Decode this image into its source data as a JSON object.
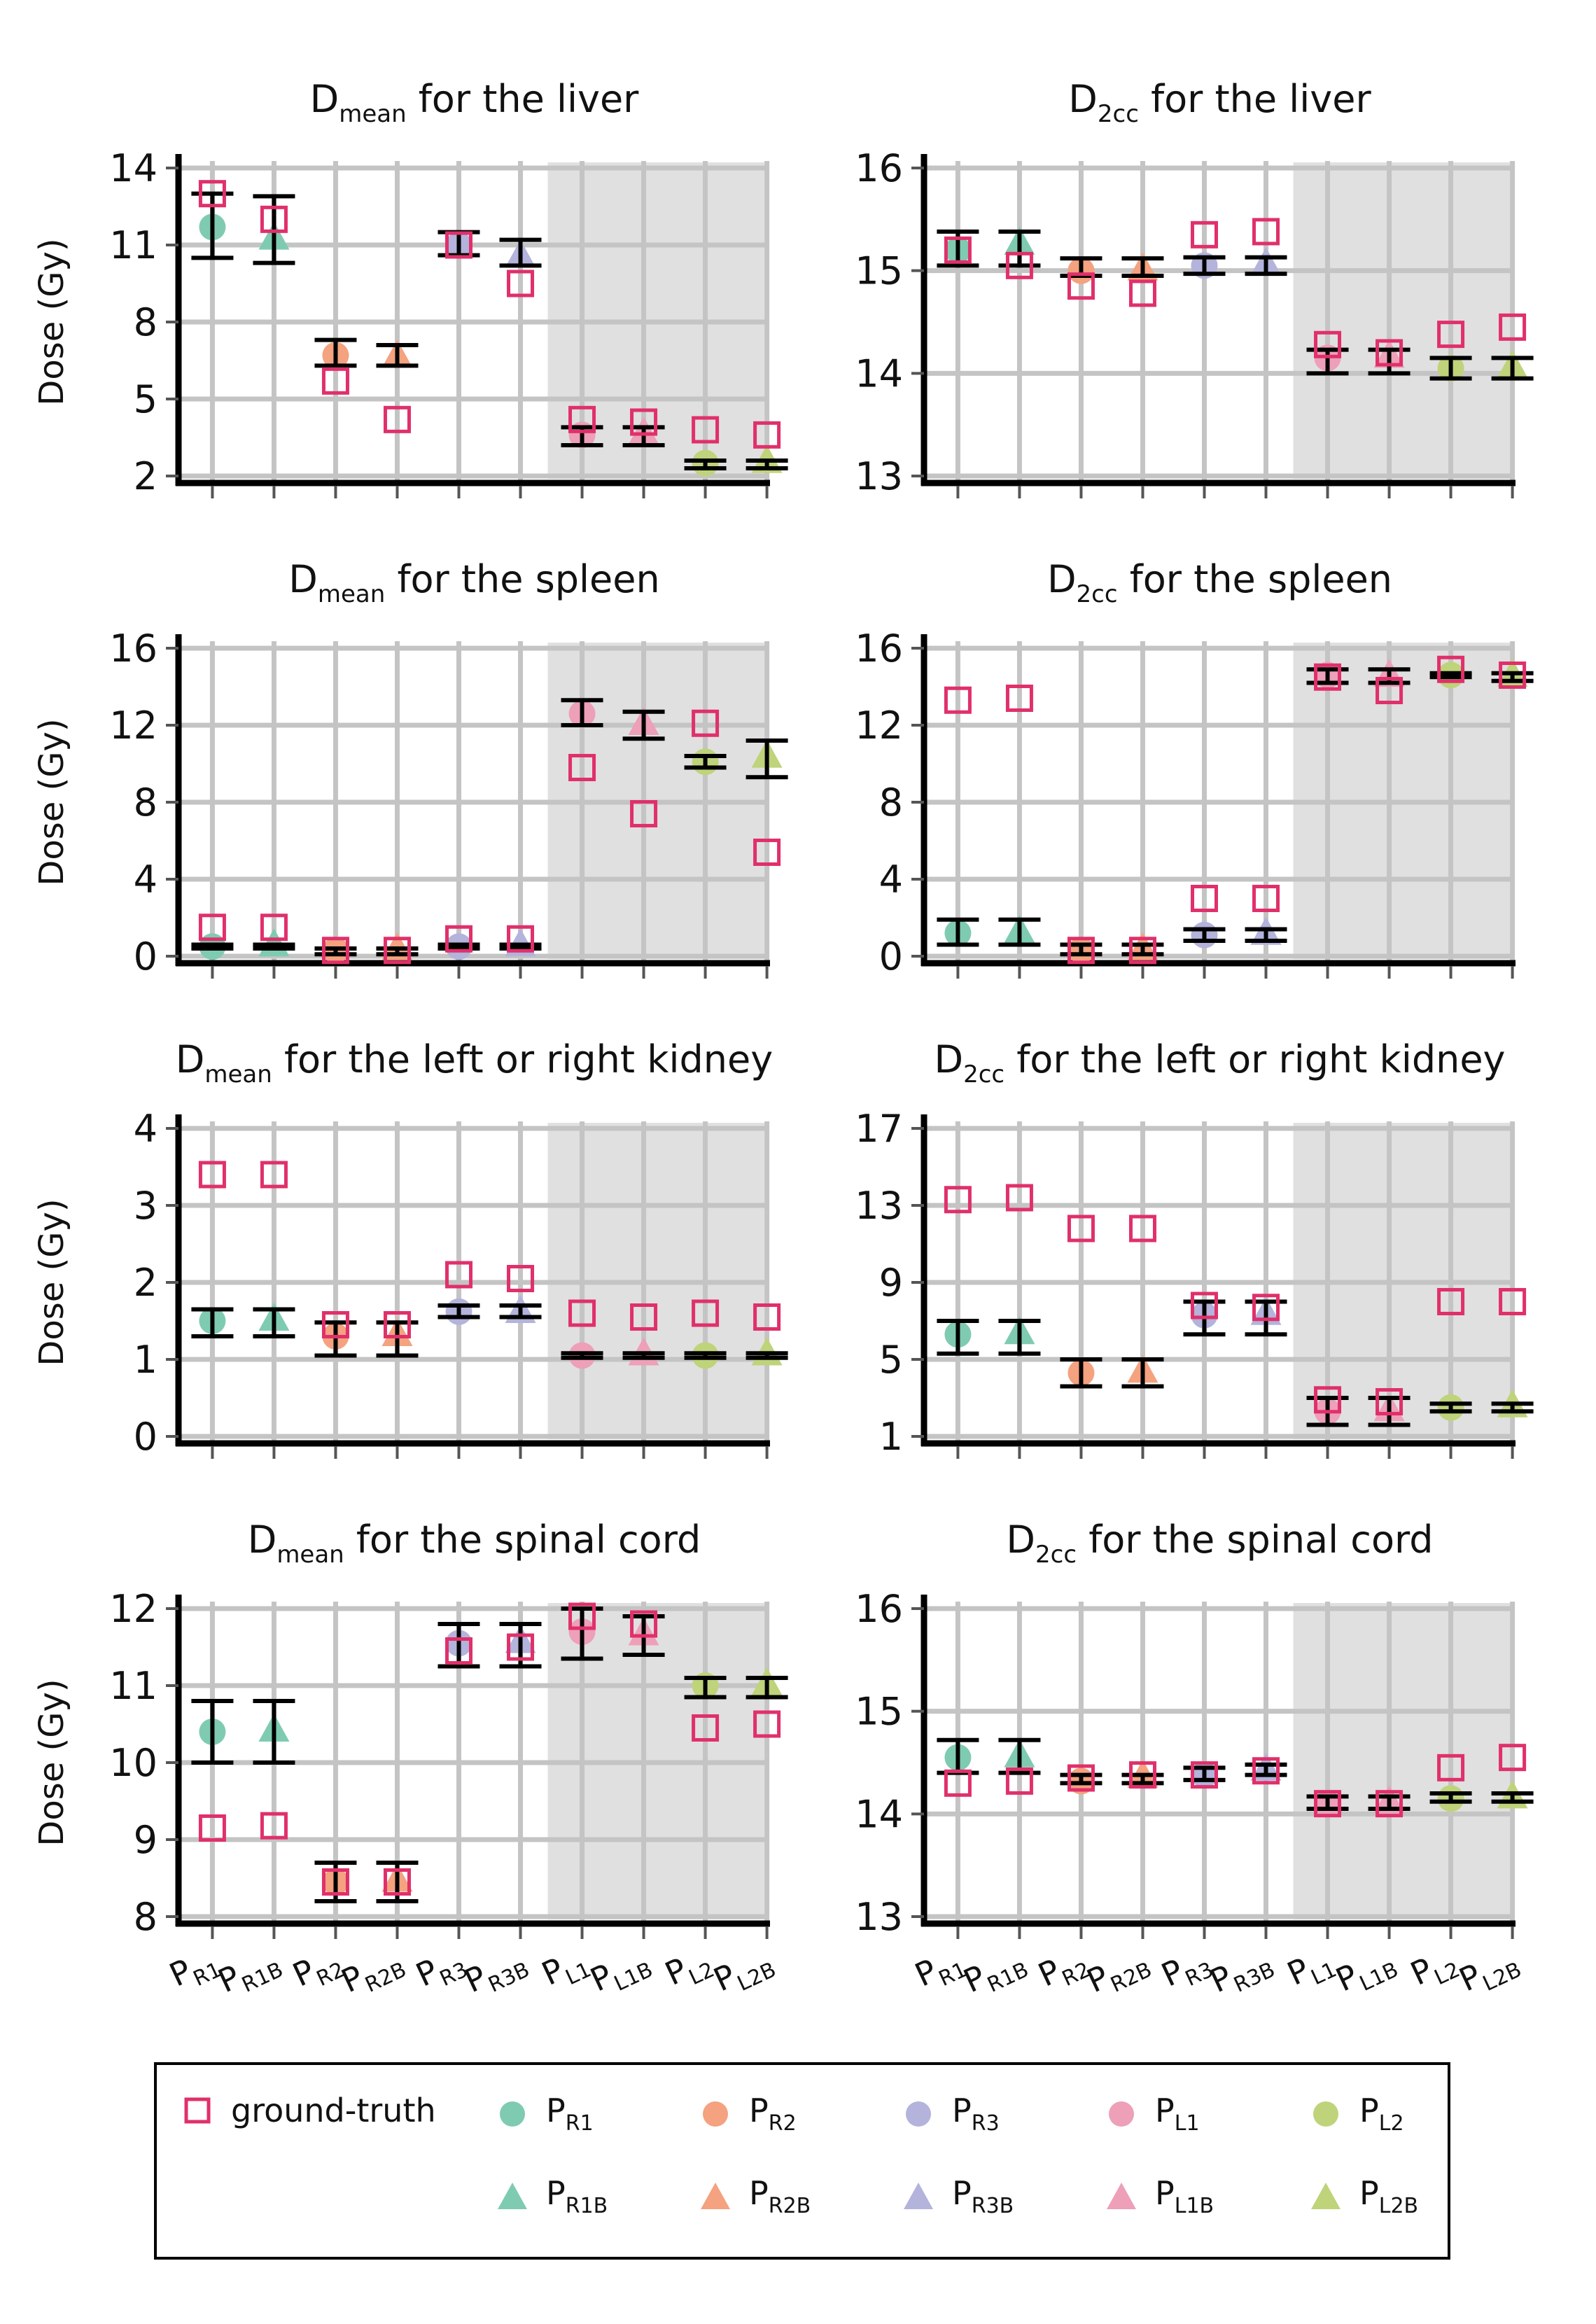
{
  "legend": [
    {
      "key": "gt",
      "marker": "square",
      "color": "#e0306a",
      "main": "ground-truth",
      "sub": ""
    },
    {
      "key": "R1",
      "marker": "circle",
      "color": "#7fcbb1",
      "main": "P",
      "sub": "R1"
    },
    {
      "key": "R2",
      "marker": "circle",
      "color": "#f4a27f",
      "main": "P",
      "sub": "R2"
    },
    {
      "key": "R3",
      "marker": "circle",
      "color": "#b3b3dc",
      "main": "P",
      "sub": "R3"
    },
    {
      "key": "L1",
      "marker": "circle",
      "color": "#eda0b8",
      "main": "P",
      "sub": "L1"
    },
    {
      "key": "L2",
      "marker": "circle",
      "color": "#bfd37a",
      "main": "P",
      "sub": "L2"
    },
    {
      "key": "R1B",
      "marker": "triangle",
      "color": "#7fcbb1",
      "main": "P",
      "sub": "R1B"
    },
    {
      "key": "R2B",
      "marker": "triangle",
      "color": "#f4a27f",
      "main": "P",
      "sub": "R2B"
    },
    {
      "key": "R3B",
      "marker": "triangle",
      "color": "#b3b3dc",
      "main": "P",
      "sub": "R3B"
    },
    {
      "key": "L1B",
      "marker": "triangle",
      "color": "#eda0b8",
      "main": "P",
      "sub": "L1B"
    },
    {
      "key": "L2B",
      "marker": "triangle",
      "color": "#bfd37a",
      "main": "P",
      "sub": "L2B"
    }
  ],
  "chart_data": [
    {
      "type": "scatter",
      "title_main": "D",
      "title_sub": "mean",
      "title_rest": " for the liver",
      "ylabel": "Dose (Gy)",
      "ylim": [
        2,
        14
      ],
      "yticks": [
        2,
        5,
        8,
        11,
        14
      ],
      "grid": true,
      "shaded_categories": [
        "PL1",
        "PL1B",
        "PL2",
        "PL2B"
      ],
      "categories": [
        {
          "main": "P",
          "sub": "R1"
        },
        {
          "main": "P",
          "sub": "R1B"
        },
        {
          "main": "P",
          "sub": "R2"
        },
        {
          "main": "P",
          "sub": "R2B"
        },
        {
          "main": "P",
          "sub": "R3"
        },
        {
          "main": "P",
          "sub": "R3B"
        },
        {
          "main": "P",
          "sub": "L1"
        },
        {
          "main": "P",
          "sub": "L1B"
        },
        {
          "main": "P",
          "sub": "L2"
        },
        {
          "main": "P",
          "sub": "L2B"
        }
      ],
      "ground_truth": [
        13,
        12,
        5.7,
        4.2,
        11,
        9.5,
        4.2,
        4.1,
        3.8,
        3.6
      ],
      "prediction": [
        11.7,
        11.2,
        6.7,
        6.6,
        11,
        10.5,
        3.6,
        3.6,
        2.5,
        2.5
      ],
      "error_low": [
        10.5,
        10.3,
        6.3,
        6.3,
        10.6,
        10.2,
        3.2,
        3.2,
        2.3,
        2.3
      ],
      "error_high": [
        13,
        12.9,
        7.3,
        7.1,
        11.5,
        11.2,
        3.9,
        3.9,
        2.6,
        2.6
      ]
    },
    {
      "type": "scatter",
      "title_main": "D",
      "title_sub": "2cc",
      "title_rest": " for the liver",
      "ylabel": "",
      "ylim": [
        13,
        16
      ],
      "yticks": [
        13,
        14,
        15,
        16
      ],
      "grid": true,
      "shaded_categories": [
        "PL1",
        "PL1B",
        "PL2",
        "PL2B"
      ],
      "categories": [
        {
          "main": "P",
          "sub": "R1"
        },
        {
          "main": "P",
          "sub": "R1B"
        },
        {
          "main": "P",
          "sub": "R2"
        },
        {
          "main": "P",
          "sub": "R2B"
        },
        {
          "main": "P",
          "sub": "R3"
        },
        {
          "main": "P",
          "sub": "R3B"
        },
        {
          "main": "P",
          "sub": "L1"
        },
        {
          "main": "P",
          "sub": "L1B"
        },
        {
          "main": "P",
          "sub": "L2"
        },
        {
          "main": "P",
          "sub": "L2B"
        }
      ],
      "ground_truth": [
        15.2,
        15.05,
        14.85,
        14.78,
        15.35,
        15.38,
        14.28,
        14.2,
        14.38,
        14.45
      ],
      "prediction": [
        15.2,
        15.25,
        15.0,
        15.0,
        15.05,
        15.05,
        14.15,
        14.15,
        14.05,
        14.05
      ],
      "error_low": [
        15.05,
        15.05,
        14.95,
        14.95,
        14.97,
        14.97,
        14.0,
        14.0,
        13.95,
        13.95
      ],
      "error_high": [
        15.38,
        15.38,
        15.12,
        15.12,
        15.13,
        15.13,
        14.23,
        14.23,
        14.15,
        14.15
      ]
    },
    {
      "type": "scatter",
      "title_main": "D",
      "title_sub": "mean",
      "title_rest": " for the spleen",
      "ylabel": "Dose (Gy)",
      "ylim": [
        0,
        16
      ],
      "yticks": [
        0,
        4,
        8,
        12,
        16
      ],
      "grid": true,
      "shaded_categories": [
        "PL1",
        "PL1B",
        "PL2",
        "PL2B"
      ],
      "categories": [
        {
          "main": "P",
          "sub": "R1"
        },
        {
          "main": "P",
          "sub": "R1B"
        },
        {
          "main": "P",
          "sub": "R2"
        },
        {
          "main": "P",
          "sub": "R2B"
        },
        {
          "main": "P",
          "sub": "R3"
        },
        {
          "main": "P",
          "sub": "R3B"
        },
        {
          "main": "P",
          "sub": "L1"
        },
        {
          "main": "P",
          "sub": "L1B"
        },
        {
          "main": "P",
          "sub": "L2"
        },
        {
          "main": "P",
          "sub": "L2B"
        }
      ],
      "ground_truth": [
        1.5,
        1.5,
        0.3,
        0.3,
        0.9,
        0.9,
        9.8,
        7.4,
        12.1,
        5.4
      ],
      "prediction": [
        0.5,
        0.5,
        0.3,
        0.3,
        0.5,
        0.5,
        12.6,
        12.0,
        10.1,
        10.3
      ],
      "error_low": [
        0.4,
        0.4,
        0.1,
        0.1,
        0.4,
        0.4,
        12.0,
        11.3,
        9.8,
        9.3
      ],
      "error_high": [
        0.6,
        0.6,
        0.4,
        0.4,
        0.6,
        0.6,
        13.3,
        12.7,
        10.4,
        11.2
      ]
    },
    {
      "type": "scatter",
      "title_main": "D",
      "title_sub": "2cc",
      "title_rest": " for the spleen",
      "ylabel": "",
      "ylim": [
        0,
        16
      ],
      "yticks": [
        0,
        4,
        8,
        12,
        16
      ],
      "grid": true,
      "shaded_categories": [
        "PL1",
        "PL1B",
        "PL2",
        "PL2B"
      ],
      "categories": [
        {
          "main": "P",
          "sub": "R1"
        },
        {
          "main": "P",
          "sub": "R1B"
        },
        {
          "main": "P",
          "sub": "R2"
        },
        {
          "main": "P",
          "sub": "R2B"
        },
        {
          "main": "P",
          "sub": "R3"
        },
        {
          "main": "P",
          "sub": "R3B"
        },
        {
          "main": "P",
          "sub": "L1"
        },
        {
          "main": "P",
          "sub": "L1B"
        },
        {
          "main": "P",
          "sub": "L2"
        },
        {
          "main": "P",
          "sub": "L2B"
        }
      ],
      "ground_truth": [
        13.3,
        13.4,
        0.3,
        0.3,
        3.0,
        3.0,
        14.5,
        13.8,
        14.9,
        14.6
      ],
      "prediction": [
        1.2,
        1.2,
        0.3,
        0.3,
        1.1,
        1.1,
        14.6,
        14.5,
        14.6,
        14.5
      ],
      "error_low": [
        0.6,
        0.6,
        0.1,
        0.1,
        0.8,
        0.8,
        14.2,
        14.2,
        14.5,
        14.3
      ],
      "error_high": [
        1.9,
        1.9,
        0.6,
        0.6,
        1.4,
        1.4,
        14.9,
        14.9,
        14.7,
        14.7
      ]
    },
    {
      "type": "scatter",
      "title_main": "D",
      "title_sub": "mean",
      "title_rest": " for the left or right kidney",
      "ylabel": "Dose (Gy)",
      "ylim": [
        0,
        4
      ],
      "yticks": [
        0,
        1,
        2,
        3,
        4
      ],
      "grid": true,
      "shaded_categories": [
        "PL1",
        "PL1B",
        "PL2",
        "PL2B"
      ],
      "categories": [
        {
          "main": "P",
          "sub": "R1"
        },
        {
          "main": "P",
          "sub": "R1B"
        },
        {
          "main": "P",
          "sub": "R2"
        },
        {
          "main": "P",
          "sub": "R2B"
        },
        {
          "main": "P",
          "sub": "R3"
        },
        {
          "main": "P",
          "sub": "R3B"
        },
        {
          "main": "P",
          "sub": "L1"
        },
        {
          "main": "P",
          "sub": "L1B"
        },
        {
          "main": "P",
          "sub": "L2"
        },
        {
          "main": "P",
          "sub": "L2B"
        }
      ],
      "ground_truth": [
        3.4,
        3.4,
        1.45,
        1.45,
        2.1,
        2.05,
        1.6,
        1.55,
        1.6,
        1.55
      ],
      "prediction": [
        1.5,
        1.5,
        1.3,
        1.3,
        1.62,
        1.6,
        1.05,
        1.05,
        1.05,
        1.05
      ],
      "error_low": [
        1.3,
        1.3,
        1.05,
        1.05,
        1.55,
        1.55,
        1.02,
        1.02,
        1.02,
        1.02
      ],
      "error_high": [
        1.65,
        1.65,
        1.48,
        1.48,
        1.7,
        1.7,
        1.08,
        1.08,
        1.08,
        1.08
      ]
    },
    {
      "type": "scatter",
      "title_main": "D",
      "title_sub": "2cc",
      "title_rest": " for the left or right kidney",
      "ylabel": "",
      "ylim": [
        1,
        17
      ],
      "yticks": [
        1,
        5,
        9,
        13,
        17
      ],
      "grid": true,
      "shaded_categories": [
        "PL1",
        "PL1B",
        "PL2",
        "PL2B"
      ],
      "categories": [
        {
          "main": "P",
          "sub": "R1"
        },
        {
          "main": "P",
          "sub": "R1B"
        },
        {
          "main": "P",
          "sub": "R2"
        },
        {
          "main": "P",
          "sub": "R2B"
        },
        {
          "main": "P",
          "sub": "R3"
        },
        {
          "main": "P",
          "sub": "R3B"
        },
        {
          "main": "P",
          "sub": "L1"
        },
        {
          "main": "P",
          "sub": "L1B"
        },
        {
          "main": "P",
          "sub": "L2"
        },
        {
          "main": "P",
          "sub": "L2B"
        }
      ],
      "ground_truth": [
        13.3,
        13.4,
        11.8,
        11.8,
        7.8,
        7.7,
        2.9,
        2.8,
        8.0,
        8.0
      ],
      "prediction": [
        6.3,
        6.3,
        4.3,
        4.3,
        7.3,
        7.3,
        2.3,
        2.3,
        2.5,
        2.5
      ],
      "error_low": [
        5.3,
        5.3,
        3.6,
        3.6,
        6.3,
        6.3,
        1.6,
        1.6,
        2.3,
        2.3
      ],
      "error_high": [
        7.0,
        7.0,
        5.0,
        5.0,
        8.0,
        8.0,
        3.0,
        3.0,
        2.7,
        2.7
      ]
    },
    {
      "type": "scatter",
      "title_main": "D",
      "title_sub": "mean",
      "title_rest": " for the spinal cord",
      "ylabel": "Dose (Gy)",
      "ylim": [
        8,
        12
      ],
      "yticks": [
        8,
        9,
        10,
        11,
        12
      ],
      "grid": true,
      "shaded_categories": [
        "PL1",
        "PL1B",
        "PL2",
        "PL2B"
      ],
      "categories": [
        {
          "main": "P",
          "sub": "R1"
        },
        {
          "main": "P",
          "sub": "R1B"
        },
        {
          "main": "P",
          "sub": "R2"
        },
        {
          "main": "P",
          "sub": "R2B"
        },
        {
          "main": "P",
          "sub": "R3"
        },
        {
          "main": "P",
          "sub": "R3B"
        },
        {
          "main": "P",
          "sub": "L1"
        },
        {
          "main": "P",
          "sub": "L1B"
        },
        {
          "main": "P",
          "sub": "L2"
        },
        {
          "main": "P",
          "sub": "L2B"
        }
      ],
      "ground_truth": [
        9.15,
        9.18,
        8.45,
        8.45,
        11.45,
        11.5,
        11.9,
        11.8,
        10.45,
        10.5
      ],
      "prediction": [
        10.4,
        10.4,
        8.45,
        8.45,
        11.55,
        11.55,
        11.7,
        11.65,
        11.0,
        11.0
      ],
      "error_low": [
        10.0,
        10.0,
        8.2,
        8.2,
        11.25,
        11.25,
        11.35,
        11.4,
        10.85,
        10.85
      ],
      "error_high": [
        10.8,
        10.8,
        8.7,
        8.7,
        11.8,
        11.8,
        12.0,
        11.9,
        11.1,
        11.1
      ]
    },
    {
      "type": "scatter",
      "title_main": "D",
      "title_sub": "2cc",
      "title_rest": " for the spinal cord",
      "ylabel": "",
      "ylim": [
        13,
        16
      ],
      "yticks": [
        13,
        14,
        15,
        16
      ],
      "grid": true,
      "shaded_categories": [
        "PL1",
        "PL1B",
        "PL2",
        "PL2B"
      ],
      "categories": [
        {
          "main": "P",
          "sub": "R1"
        },
        {
          "main": "P",
          "sub": "R1B"
        },
        {
          "main": "P",
          "sub": "R2"
        },
        {
          "main": "P",
          "sub": "R2B"
        },
        {
          "main": "P",
          "sub": "R3"
        },
        {
          "main": "P",
          "sub": "R3B"
        },
        {
          "main": "P",
          "sub": "L1"
        },
        {
          "main": "P",
          "sub": "L1B"
        },
        {
          "main": "P",
          "sub": "L2"
        },
        {
          "main": "P",
          "sub": "L2B"
        }
      ],
      "ground_truth": [
        14.3,
        14.32,
        14.35,
        14.38,
        14.38,
        14.42,
        14.1,
        14.1,
        14.45,
        14.55
      ],
      "prediction": [
        14.55,
        14.55,
        14.32,
        14.35,
        14.38,
        14.42,
        14.1,
        14.1,
        14.15,
        14.15
      ],
      "error_low": [
        14.4,
        14.4,
        14.3,
        14.3,
        14.33,
        14.38,
        14.05,
        14.05,
        14.12,
        14.12
      ],
      "error_high": [
        14.72,
        14.72,
        14.38,
        14.38,
        14.45,
        14.48,
        14.17,
        14.17,
        14.2,
        14.2
      ]
    }
  ]
}
